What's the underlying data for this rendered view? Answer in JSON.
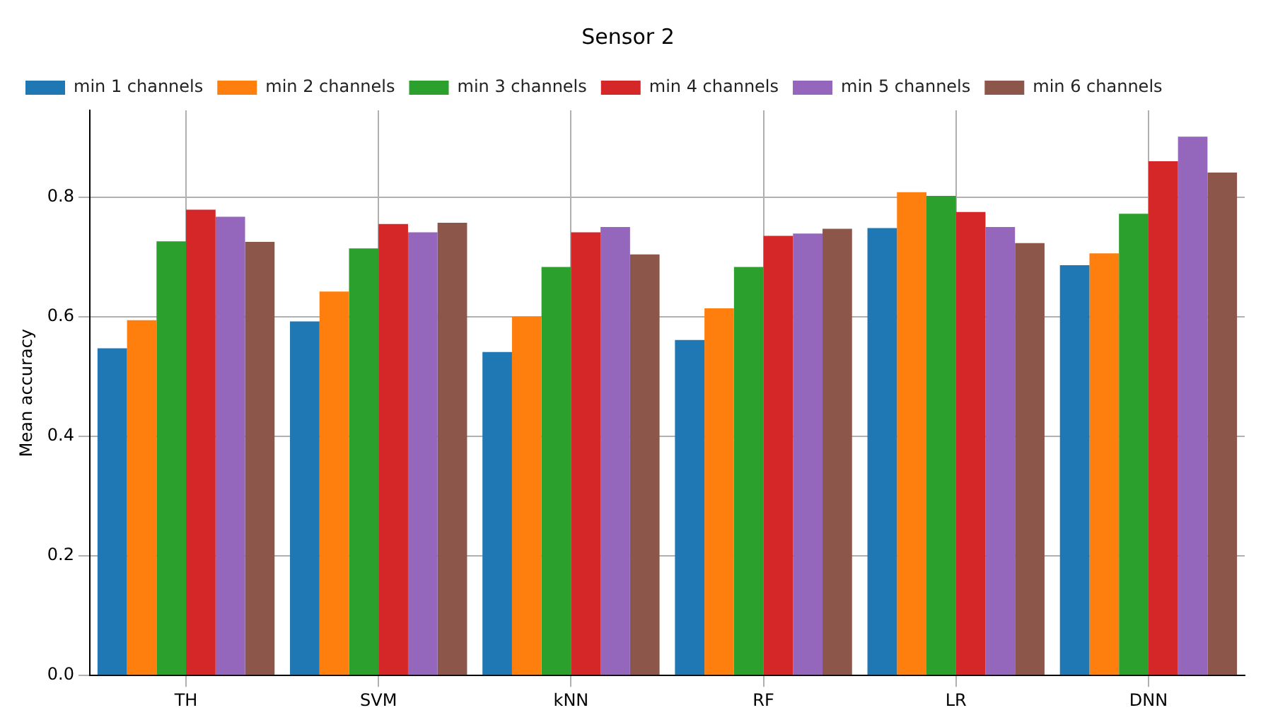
{
  "chart_data": {
    "type": "bar",
    "title": "Sensor 2",
    "ylabel": "Mean accuracy",
    "categories": [
      "TH",
      "SVM",
      "kNN",
      "RF",
      "LR",
      "DNN"
    ],
    "series": [
      {
        "name": "min 1 channels",
        "color": "#1f77b4",
        "values": [
          0.547,
          0.592,
          0.541,
          0.561,
          0.748,
          0.686
        ]
      },
      {
        "name": "min 2 channels",
        "color": "#ff7f0e",
        "values": [
          0.594,
          0.642,
          0.6,
          0.614,
          0.808,
          0.706
        ]
      },
      {
        "name": "min 3 channels",
        "color": "#2ca02c",
        "values": [
          0.726,
          0.714,
          0.683,
          0.683,
          0.802,
          0.772
        ]
      },
      {
        "name": "min 4 channels",
        "color": "#d62728",
        "values": [
          0.779,
          0.755,
          0.741,
          0.735,
          0.775,
          0.86
        ]
      },
      {
        "name": "min 5 channels",
        "color": "#9467bd",
        "values": [
          0.767,
          0.741,
          0.75,
          0.739,
          0.75,
          0.901
        ]
      },
      {
        "name": "min 6 channels",
        "color": "#8c564b",
        "values": [
          0.725,
          0.757,
          0.704,
          0.747,
          0.723,
          0.841
        ]
      }
    ],
    "ylim": [
      0,
      0.945
    ],
    "yticks": [
      {
        "value": 0,
        "label": "0.0"
      },
      0.2,
      0.4,
      0.6,
      0.8
    ],
    "grid": true,
    "legend": "top left"
  }
}
